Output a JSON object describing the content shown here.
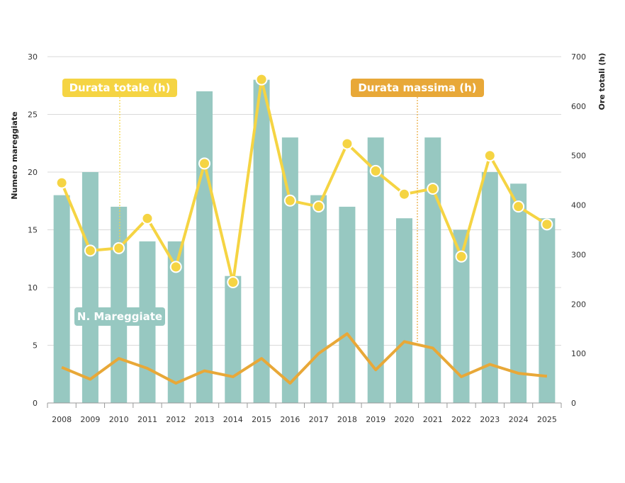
{
  "chart_data": {
    "type": "bar",
    "categories": [
      "2008",
      "2009",
      "2010",
      "2011",
      "2012",
      "2013",
      "2014",
      "2015",
      "2016",
      "2017",
      "2018",
      "2019",
      "2020",
      "2021",
      "2022",
      "2023",
      "2024",
      "2025"
    ],
    "ylabel_left": "Numero mareggiate",
    "ylabel_right": "Ore totali (h)",
    "ylim_left": [
      0,
      30
    ],
    "ylim_right": [
      0,
      700
    ],
    "yticks_left": [
      "0",
      "5",
      "10",
      "15",
      "20",
      "25",
      "30"
    ],
    "yticks_right": [
      "0",
      "100",
      "200",
      "300",
      "400",
      "500",
      "600",
      "700"
    ],
    "grid": true,
    "series": [
      {
        "name": "N. Mareggiate",
        "type": "bar",
        "axis": "left",
        "color": "#97c8c1",
        "label_bg": "#97c8c1",
        "values": [
          18,
          20,
          17,
          14,
          14,
          27,
          11,
          28,
          23,
          18,
          17,
          23,
          16,
          23,
          15,
          20,
          19,
          16
        ]
      },
      {
        "name": "Durata totale (h)",
        "type": "line",
        "axis": "right",
        "color": "#f5d443",
        "label_bg": "#f5d443",
        "values": [
          445,
          308,
          313,
          373,
          275,
          484,
          244,
          654,
          409,
          397,
          524,
          469,
          422,
          433,
          296,
          500,
          397,
          361
        ]
      },
      {
        "name": "Durata massima (h)",
        "type": "line",
        "axis": "right",
        "color": "#e8a838",
        "label_bg": "#e8a838",
        "values": [
          72,
          48,
          90,
          70,
          40,
          65,
          53,
          90,
          40,
          100,
          140,
          67,
          124,
          111,
          53,
          78,
          60,
          54
        ]
      }
    ]
  }
}
